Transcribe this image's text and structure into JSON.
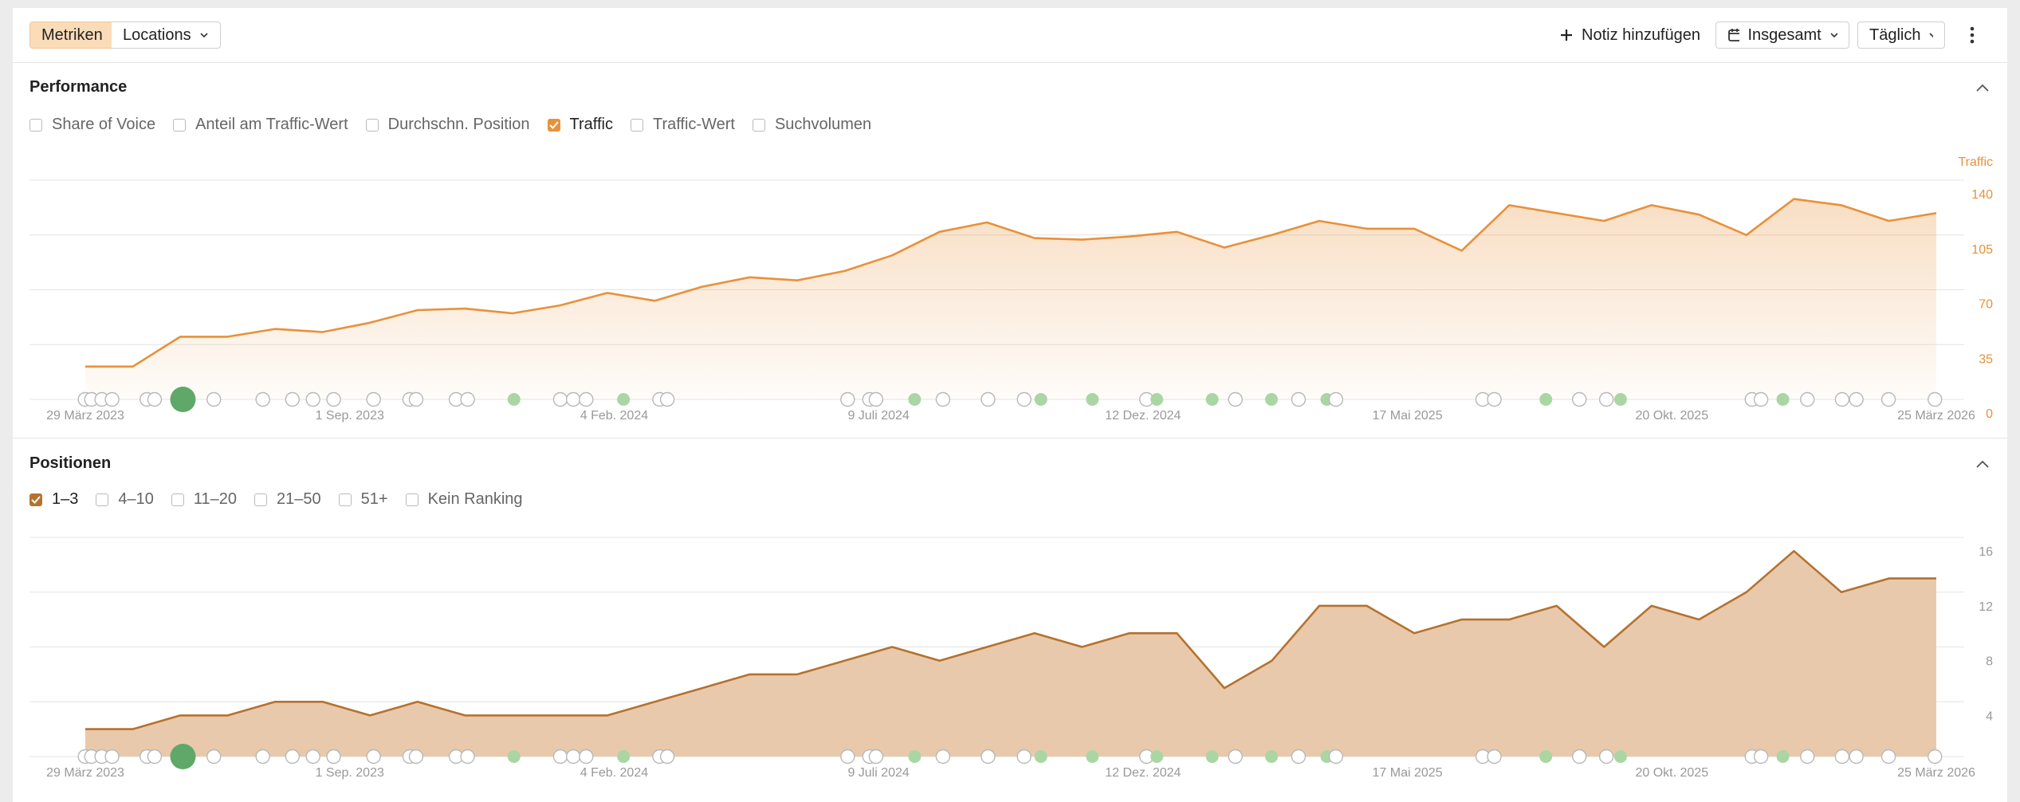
{
  "toolbar": {
    "tabs": [
      "Metriken",
      "Locations"
    ],
    "add_note": "Notiz hinzufügen",
    "range": "Insgesamt",
    "interval": "Täglich"
  },
  "panels": [
    {
      "title": "Performance",
      "options": [
        {
          "label": "Share of Voice",
          "checked": false
        },
        {
          "label": "Anteil am Traffic-Wert",
          "checked": false
        },
        {
          "label": "Durchschn. Position",
          "checked": false
        },
        {
          "label": "Traffic",
          "checked": true
        },
        {
          "label": "Traffic-Wert",
          "checked": false
        },
        {
          "label": "Suchvolumen",
          "checked": false
        }
      ]
    },
    {
      "title": "Positionen",
      "options": [
        {
          "label": "1–3",
          "checked": true
        },
        {
          "label": "4–10",
          "checked": false
        },
        {
          "label": "11–20",
          "checked": false
        },
        {
          "label": "21–50",
          "checked": false
        },
        {
          "label": "51+",
          "checked": false
        },
        {
          "label": "Kein Ranking",
          "checked": false
        }
      ]
    }
  ],
  "chart_data": [
    {
      "type": "area",
      "ylabel": "Traffic",
      "color": "#e8913a",
      "fill": "gradient",
      "grid": true,
      "x": [
        "2023-03-29",
        "2023-04-26",
        "2023-05-24",
        "2023-06-21",
        "2023-07-19",
        "2023-08-16",
        "2023-09-13",
        "2023-10-11",
        "2023-11-08",
        "2023-12-06",
        "2024-01-03",
        "2024-01-31",
        "2024-02-28",
        "2024-03-27",
        "2024-04-24",
        "2024-05-22",
        "2024-06-19",
        "2024-07-17",
        "2024-08-14",
        "2024-09-11",
        "2024-10-09",
        "2024-11-06",
        "2024-12-04",
        "2025-01-01",
        "2025-01-29",
        "2025-02-26",
        "2025-03-26",
        "2025-04-23",
        "2025-05-21",
        "2025-06-18",
        "2025-07-16",
        "2025-08-13",
        "2025-09-10",
        "2025-10-08",
        "2025-11-05",
        "2025-12-03",
        "2025-12-31",
        "2026-01-28",
        "2026-02-25",
        "2026-03-25"
      ],
      "values": [
        21,
        21,
        40,
        40,
        45,
        43,
        49,
        57,
        58,
        55,
        60,
        68,
        63,
        72,
        78,
        76,
        82,
        92,
        107,
        113,
        103,
        102,
        104,
        107,
        97,
        105,
        114,
        109,
        109,
        95,
        124,
        119,
        114,
        124,
        118,
        105,
        128,
        124,
        114,
        119
      ],
      "xlim": [
        "2023-03-29",
        "2026-03-25"
      ],
      "xticks": [
        {
          "value": "2023-03-29",
          "label": "29 März 2023"
        },
        {
          "value": "2023-09-01",
          "label": "1 Sep. 2023"
        },
        {
          "value": "2024-02-04",
          "label": "4 Feb. 2024"
        },
        {
          "value": "2024-07-09",
          "label": "9 Juli 2024"
        },
        {
          "value": "2024-12-12",
          "label": "12 Dez. 2024"
        },
        {
          "value": "2025-05-17",
          "label": "17 Mai 2025"
        },
        {
          "value": "2025-10-20",
          "label": "20 Okt. 2025"
        },
        {
          "value": "2026-03-25",
          "label": "25 März 2026"
        }
      ],
      "ylim": [
        0,
        140
      ],
      "yticks": [
        0,
        35,
        70,
        105,
        140
      ]
    },
    {
      "type": "area",
      "color": "#b5722e",
      "fill": "solid",
      "grid": true,
      "x": [
        "2023-03-29",
        "2023-04-26",
        "2023-05-24",
        "2023-06-21",
        "2023-07-19",
        "2023-08-16",
        "2023-09-13",
        "2023-10-11",
        "2023-11-08",
        "2023-12-06",
        "2024-01-03",
        "2024-01-31",
        "2024-02-28",
        "2024-03-27",
        "2024-04-24",
        "2024-05-22",
        "2024-06-19",
        "2024-07-17",
        "2024-08-14",
        "2024-09-11",
        "2024-10-09",
        "2024-11-06",
        "2024-12-04",
        "2025-01-01",
        "2025-01-29",
        "2025-02-26",
        "2025-03-26",
        "2025-04-23",
        "2025-05-21",
        "2025-06-18",
        "2025-07-16",
        "2025-08-13",
        "2025-09-10",
        "2025-10-08",
        "2025-11-05",
        "2025-12-03",
        "2025-12-31",
        "2026-01-28",
        "2026-02-25",
        "2026-03-25"
      ],
      "values": [
        2,
        2,
        3,
        3,
        4,
        4,
        3,
        4,
        3,
        3,
        3,
        3,
        4,
        5,
        6,
        6,
        7,
        8,
        7,
        8,
        9,
        8,
        9,
        9,
        5,
        7,
        11,
        11,
        9,
        10,
        10,
        11,
        8,
        11,
        10,
        12,
        15,
        12,
        13,
        13
      ],
      "xlim": [
        "2023-03-29",
        "2026-03-25"
      ],
      "xticks": [
        {
          "value": "2023-03-29",
          "label": "29 März 2023"
        },
        {
          "value": "2023-09-01",
          "label": "1 Sep. 2023"
        },
        {
          "value": "2024-02-04",
          "label": "4 Feb. 2024"
        },
        {
          "value": "2024-07-09",
          "label": "9 Juli 2024"
        },
        {
          "value": "2024-12-12",
          "label": "12 Dez. 2024"
        },
        {
          "value": "2025-05-17",
          "label": "17 Mai 2025"
        },
        {
          "value": "2025-10-20",
          "label": "20 Okt. 2025"
        },
        {
          "value": "2026-03-25",
          "label": "25 März 2026"
        }
      ],
      "ylim": [
        0,
        16
      ],
      "yticks": [
        4,
        8,
        12,
        16
      ]
    }
  ]
}
